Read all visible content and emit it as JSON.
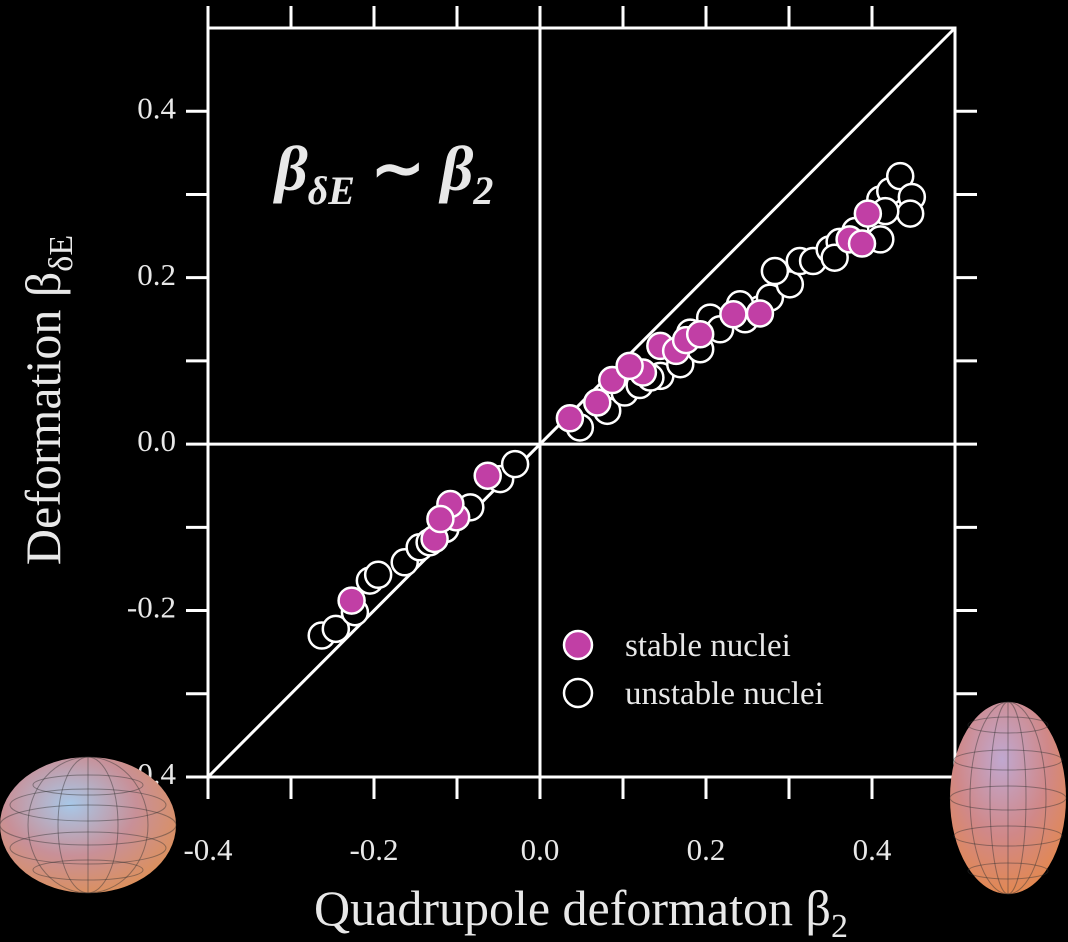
{
  "chart_data": {
    "type": "scatter",
    "annotation": {
      "lhs": "β",
      "lhs_sub": "δE",
      "rel": "∼",
      "rhs": "β",
      "rhs_sub": "2"
    },
    "x_label": "Quadrupole deformaton β",
    "x_label_sub": "2",
    "y_label": "Deformation β",
    "y_label_sub": "δE",
    "xlim": [
      -0.4,
      0.5
    ],
    "ylim": [
      -0.4,
      0.5
    ],
    "xticks": [
      -0.4,
      -0.2,
      {
        "value": 0,
        "label": "0.0"
      },
      0.2,
      0.4
    ],
    "yticks": [
      -0.4,
      -0.2,
      {
        "value": 0,
        "label": "0.0"
      },
      0.2,
      0.4
    ],
    "xminor_ticks": [
      -0.3,
      -0.1,
      0.1,
      0.3
    ],
    "yminor_ticks": [
      -0.3,
      -0.1,
      0.1,
      0.3
    ],
    "zero_lines": true,
    "diagonal": true,
    "legend": "lower right",
    "series": [
      {
        "name": "unstable nuclei",
        "color": "#ffffff",
        "filled": false,
        "x": [
          -0.263,
          -0.246,
          -0.223,
          -0.205,
          -0.195,
          -0.163,
          -0.145,
          -0.133,
          -0.114,
          -0.084,
          -0.048,
          -0.03,
          0.048,
          0.081,
          0.102,
          0.12,
          0.145,
          0.169,
          0.193,
          0.205,
          0.217,
          0.247,
          0.265,
          0.277,
          0.301,
          0.313,
          0.283,
          0.329,
          0.349,
          0.361,
          0.355,
          0.38,
          0.41,
          0.422,
          0.434,
          0.448,
          0.446,
          0.416,
          0.41,
          0.241,
          0.181,
          0.133
        ],
        "y": [
          -0.23,
          -0.222,
          -0.202,
          -0.164,
          -0.157,
          -0.142,
          -0.124,
          -0.118,
          -0.102,
          -0.076,
          -0.042,
          -0.024,
          0.02,
          0.04,
          0.062,
          0.071,
          0.082,
          0.096,
          0.114,
          0.152,
          0.138,
          0.15,
          0.162,
          0.176,
          0.192,
          0.22,
          0.208,
          0.22,
          0.234,
          0.243,
          0.224,
          0.256,
          0.294,
          0.304,
          0.322,
          0.297,
          0.277,
          0.28,
          0.246,
          0.168,
          0.134,
          0.08
        ]
      },
      {
        "name": "stable nuclei",
        "color": "#c13fa5",
        "filled": true,
        "x": [
          -0.227,
          -0.127,
          -0.101,
          -0.108,
          -0.12,
          -0.063,
          0.036,
          0.069,
          0.087,
          0.124,
          0.145,
          0.164,
          0.176,
          0.193,
          0.233,
          0.265,
          0.373,
          0.388,
          0.395,
          0.108
        ],
        "y": [
          -0.188,
          -0.114,
          -0.088,
          -0.072,
          -0.09,
          -0.038,
          0.031,
          0.05,
          0.077,
          0.086,
          0.118,
          0.112,
          0.125,
          0.132,
          0.156,
          0.157,
          0.246,
          0.241,
          0.277,
          0.094
        ]
      }
    ]
  }
}
